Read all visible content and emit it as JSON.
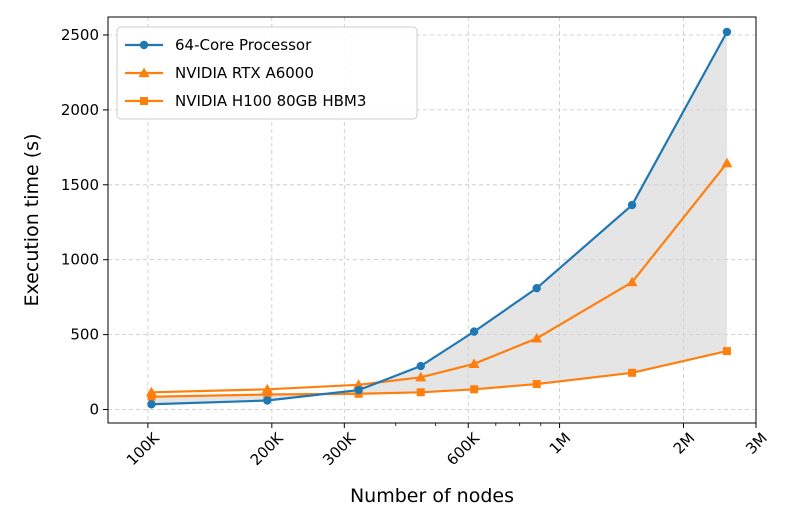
{
  "chart_data": {
    "type": "line",
    "title": "",
    "xlabel": "Number of nodes",
    "ylabel": "Execution time (s)",
    "xscale": "log",
    "xlim": [
      80000,
      3000000
    ],
    "ylim": [
      -90,
      2620
    ],
    "grid": true,
    "legend_position": "top-left",
    "x_ticks": [
      {
        "value": 100000,
        "label": "100K"
      },
      {
        "value": 200000,
        "label": "200K"
      },
      {
        "value": 300000,
        "label": "300K"
      },
      {
        "value": 600000,
        "label": "600K"
      },
      {
        "value": 1000000,
        "label": "1M"
      },
      {
        "value": 2000000,
        "label": "2M"
      },
      {
        "value": 3000000,
        "label": "3M"
      }
    ],
    "y_ticks": [
      {
        "value": 0,
        "label": "0"
      },
      {
        "value": 500,
        "label": "500"
      },
      {
        "value": 1000,
        "label": "1000"
      },
      {
        "value": 1500,
        "label": "1500"
      },
      {
        "value": 2000,
        "label": "2000"
      },
      {
        "value": 2500,
        "label": "2500"
      }
    ],
    "x": [
      102000,
      195000,
      325000,
      460000,
      620000,
      880000,
      1500000,
      2550000
    ],
    "series": [
      {
        "name": "64-Core Processor",
        "color": "#1f77b4",
        "marker": "circle",
        "values": [
          35,
          60,
          130,
          290,
          520,
          810,
          1365,
          2520
        ]
      },
      {
        "name": "NVIDIA RTX A6000",
        "color": "#ff7f0e",
        "marker": "triangle",
        "values": [
          115,
          135,
          165,
          215,
          305,
          475,
          850,
          1645
        ]
      },
      {
        "name": "NVIDIA H100 80GB HBM3",
        "color": "#ff7f0e",
        "marker": "square",
        "values": [
          85,
          100,
          105,
          115,
          135,
          170,
          245,
          390
        ]
      }
    ],
    "fill_between": {
      "upper_series": 0,
      "lower_series": 2,
      "color": "#d3d3d3"
    }
  }
}
